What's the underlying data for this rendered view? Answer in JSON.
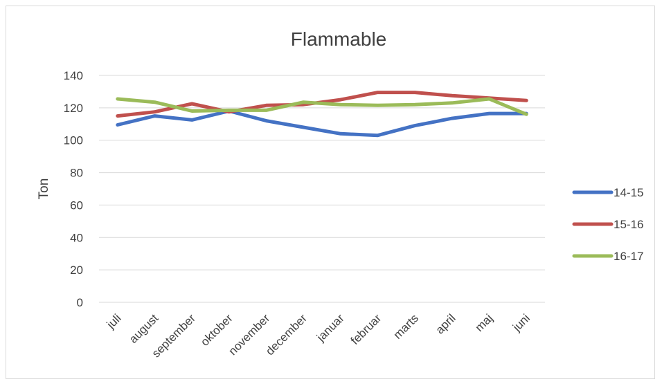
{
  "chart_data": {
    "type": "line",
    "title": "Flammable",
    "xlabel": "",
    "ylabel": "Ton",
    "ylim": [
      0,
      140
    ],
    "yticks": [
      0,
      20,
      40,
      60,
      80,
      100,
      120,
      140
    ],
    "categories": [
      "juli",
      "august",
      "september",
      "oktober",
      "november",
      "december",
      "januar",
      "februar",
      "marts",
      "april",
      "maj",
      "juni"
    ],
    "series": [
      {
        "name": "14-15",
        "color": "#4472c4",
        "values": [
          109.5,
          115,
          112.5,
          118,
          112,
          108,
          104,
          103,
          109,
          113.5,
          116.5,
          116.5
        ]
      },
      {
        "name": "15-16",
        "color": "#c0504d",
        "values": [
          115,
          117.5,
          122.5,
          117.5,
          121.5,
          122,
          125,
          129.5,
          129.5,
          127.5,
          126,
          124.5
        ]
      },
      {
        "name": "16-17",
        "color": "#9bbb59",
        "values": [
          125.5,
          123.5,
          118,
          118.5,
          118.5,
          123.5,
          122,
          121.5,
          122,
          123,
          125.5,
          116
        ]
      }
    ],
    "grid": true,
    "legend_position": "right"
  }
}
